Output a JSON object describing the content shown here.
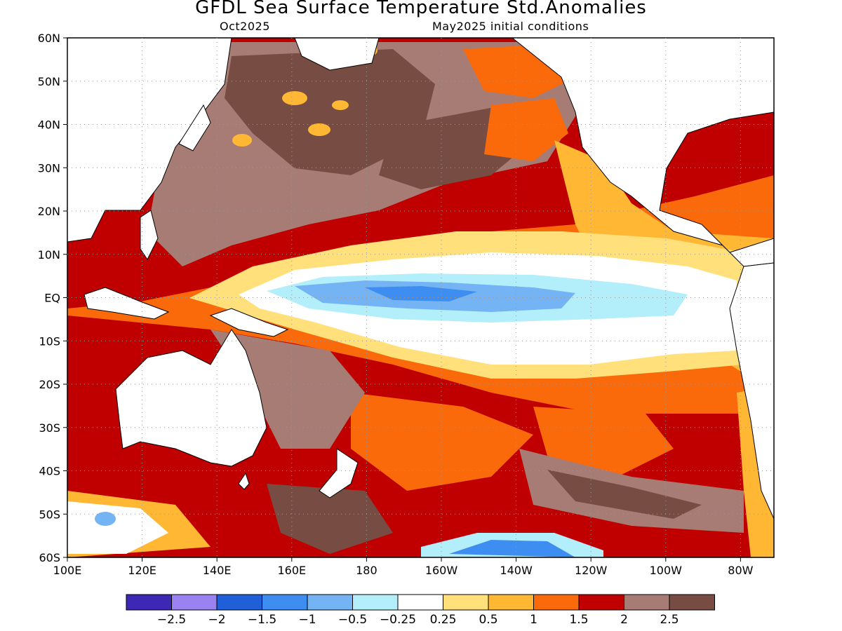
{
  "title": "GFDL Sea Surface Temperature Std.Anomalies",
  "lead_time": "Oct2025",
  "initial_conditions": "May2025 initial conditions",
  "lat_labels": [
    "60N",
    "50N",
    "40N",
    "30N",
    "20N",
    "10N",
    "EQ",
    "10S",
    "20S",
    "30S",
    "40S",
    "50S",
    "60S"
  ],
  "lon_labels": [
    "100E",
    "120E",
    "140E",
    "160E",
    "180",
    "160W",
    "140W",
    "120W",
    "100W",
    "80W"
  ],
  "colorbar": {
    "colors": [
      "#3c28b4",
      "#9a82f0",
      "#1f5fd8",
      "#3d8ef0",
      "#74b4f5",
      "#b3eefb",
      "#ffffff",
      "#ffe07a",
      "#ffb734",
      "#fa6a0a",
      "#c00000",
      "#a67c74",
      "#774c42"
    ],
    "labels": [
      "-2.5",
      "-2",
      "-1.5",
      "-1",
      "-0.5",
      "-0.25",
      "0.25",
      "0.5",
      "1",
      "1.5",
      "2",
      "2.5"
    ]
  },
  "colors": {
    "land": "#ffffff",
    "coast": "#000000",
    "grid": "#999999"
  }
}
